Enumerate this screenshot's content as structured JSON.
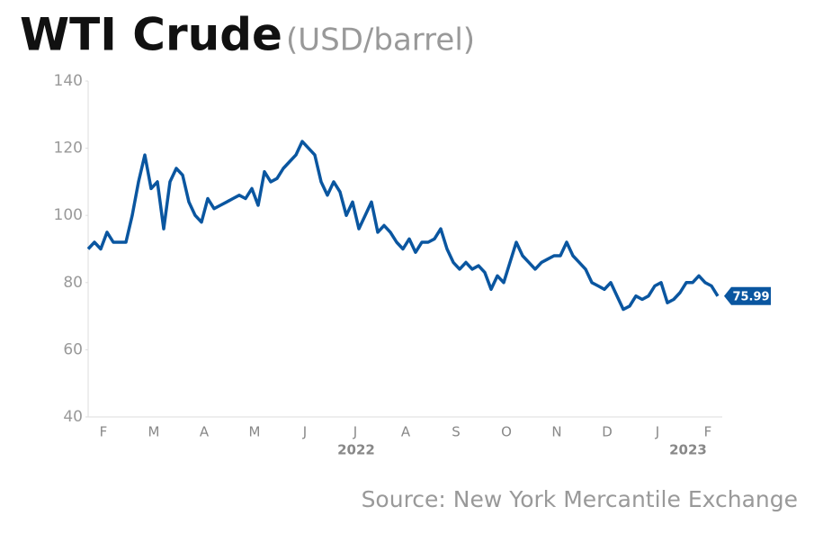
{
  "chart_data": {
    "type": "line",
    "title": "WTI Crude",
    "subtitle": "(USD/barrel)",
    "source": "Source: New York Mercantile Exchange",
    "color": "#0a56a0",
    "categories": [
      null,
      null,
      "F",
      null,
      null,
      null,
      null,
      null,
      null,
      null,
      "M",
      null,
      null,
      null,
      null,
      null,
      null,
      null,
      "A",
      null,
      null,
      null,
      null,
      null,
      null,
      null,
      "M",
      null,
      null,
      null,
      null,
      null,
      null,
      null,
      "J",
      null,
      null,
      null,
      null,
      null,
      null,
      null,
      "J",
      null,
      null,
      null,
      null,
      null,
      null,
      null,
      "A",
      null,
      null,
      null,
      null,
      null,
      null,
      null,
      "S",
      null,
      null,
      null,
      null,
      null,
      null,
      null,
      "O",
      null,
      null,
      null,
      null,
      null,
      null,
      null,
      "N",
      null,
      null,
      null,
      null,
      null,
      null,
      null,
      "D",
      null,
      null,
      null,
      null,
      null,
      null,
      null,
      "J",
      null,
      null,
      null,
      null,
      null,
      null,
      null,
      "F",
      null,
      null
    ],
    "values": [
      90,
      92,
      90,
      95,
      92,
      92,
      92,
      100,
      110,
      118,
      108,
      110,
      96,
      110,
      114,
      112,
      104,
      100,
      98,
      105,
      102,
      103,
      104,
      105,
      106,
      105,
      108,
      103,
      113,
      110,
      111,
      114,
      116,
      118,
      122,
      120,
      118,
      110,
      106,
      110,
      107,
      100,
      104,
      96,
      100,
      104,
      95,
      97,
      95,
      92,
      90,
      93,
      89,
      92,
      92,
      93,
      96,
      90,
      86,
      84,
      86,
      84,
      85,
      83,
      78,
      82,
      80,
      86,
      92,
      88,
      86,
      84,
      86,
      87,
      88,
      88,
      92,
      88,
      86,
      84,
      80,
      79,
      78,
      80,
      76,
      72,
      73,
      76,
      75,
      76,
      79,
      80,
      74,
      75,
      77,
      80,
      80,
      82,
      80,
      79,
      75.99
    ],
    "x_group_labels": [
      "2022",
      "2023"
    ],
    "ylim": [
      40,
      140
    ],
    "yticks": [
      40,
      60,
      80,
      100,
      120,
      140
    ]
  }
}
